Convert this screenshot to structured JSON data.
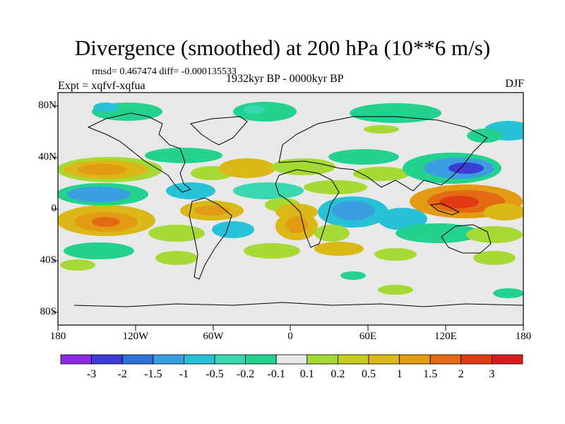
{
  "title": "Divergence (smoothed) at 200 hPa (10**6 m/s)",
  "stats": "rmsd= 0.467474 diff= -0.000135533",
  "experiment": "Expt = xqfvf-xqfua",
  "period": "1932kyr BP - 0000kyr BP",
  "season": "DJF",
  "lat_labels": [
    "80N",
    "40N",
    "0",
    "40S",
    "80S"
  ],
  "lon_labels": [
    "180",
    "120W",
    "60W",
    "0",
    "60E",
    "120E",
    "180"
  ],
  "colorbar": {
    "colors": [
      "#8a2be2",
      "#3c3cd6",
      "#2f6fd8",
      "#3a9ee0",
      "#27c2d6",
      "#3ad6b0",
      "#23d28f",
      "#e8e8e8",
      "#a7d935",
      "#c8cc1e",
      "#d9b817",
      "#e29b12",
      "#e36a12",
      "#e23b14",
      "#d91d1d"
    ],
    "labels": [
      "-3",
      "-2",
      "-1.5",
      "-1",
      "-0.5",
      "-0.2",
      "-0.1",
      "0.1",
      "0.2",
      "0.5",
      "1",
      "1.5",
      "2",
      "3"
    ]
  }
}
